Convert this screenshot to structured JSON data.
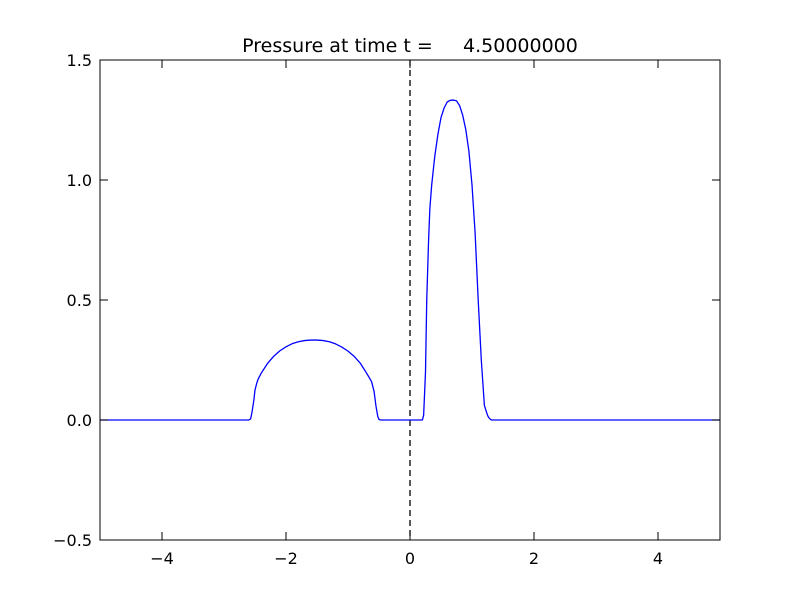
{
  "chart_data": {
    "type": "line",
    "title": "Pressure at time t =     4.50000000",
    "xlabel": "",
    "ylabel": "",
    "xlim": [
      -5,
      5
    ],
    "ylim": [
      -0.5,
      1.5
    ],
    "x_ticks": [
      -4,
      -2,
      0,
      2,
      4
    ],
    "x_tick_labels": [
      "−4",
      "−2",
      "0",
      "2",
      "4"
    ],
    "y_ticks": [
      -0.5,
      0.0,
      0.5,
      1.0,
      1.5
    ],
    "y_tick_labels": [
      "−0.5",
      "0.0",
      "0.5",
      "1.0",
      "1.5"
    ],
    "grid": false,
    "legend": "none",
    "series": [
      {
        "color": "#0000ff",
        "x": [
          -5.0,
          -2.6,
          -2.57,
          -2.55,
          -2.52,
          -2.5,
          -2.47,
          -2.45,
          -2.4,
          -2.3,
          -2.2,
          -2.1,
          -2.0,
          -1.9,
          -1.8,
          -1.7,
          -1.6,
          -1.5,
          -1.4,
          -1.3,
          -1.2,
          -1.1,
          -1.0,
          -0.9,
          -0.8,
          -0.7,
          -0.62,
          -0.58,
          -0.55,
          -0.52,
          -0.5,
          -0.47,
          -0.45,
          0.2,
          0.22,
          0.25,
          0.27,
          0.3,
          0.32,
          0.35,
          0.4,
          0.45,
          0.5,
          0.55,
          0.6,
          0.65,
          0.7,
          0.75,
          0.8,
          0.85,
          0.9,
          0.95,
          1.0,
          1.05,
          1.1,
          1.15,
          1.2,
          1.25,
          1.27,
          1.3,
          1.32,
          1.35,
          5.0
        ],
        "y": [
          0.0,
          0.0,
          0.005,
          0.03,
          0.08,
          0.125,
          0.155,
          0.17,
          0.195,
          0.235,
          0.265,
          0.288,
          0.305,
          0.318,
          0.326,
          0.331,
          0.333,
          0.333,
          0.331,
          0.326,
          0.317,
          0.304,
          0.287,
          0.265,
          0.236,
          0.195,
          0.16,
          0.12,
          0.06,
          0.015,
          0.002,
          0.0,
          0.0,
          0.0,
          0.02,
          0.2,
          0.5,
          0.75,
          0.88,
          0.98,
          1.1,
          1.19,
          1.26,
          1.3,
          1.325,
          1.332,
          1.333,
          1.33,
          1.31,
          1.27,
          1.21,
          1.12,
          0.98,
          0.78,
          0.5,
          0.25,
          0.06,
          0.02,
          0.01,
          0.002,
          0.0,
          0.0,
          0.0
        ]
      }
    ],
    "annotations": [
      {
        "type": "vertical-dashed-line",
        "x": 0,
        "color": "#000000"
      }
    ]
  }
}
